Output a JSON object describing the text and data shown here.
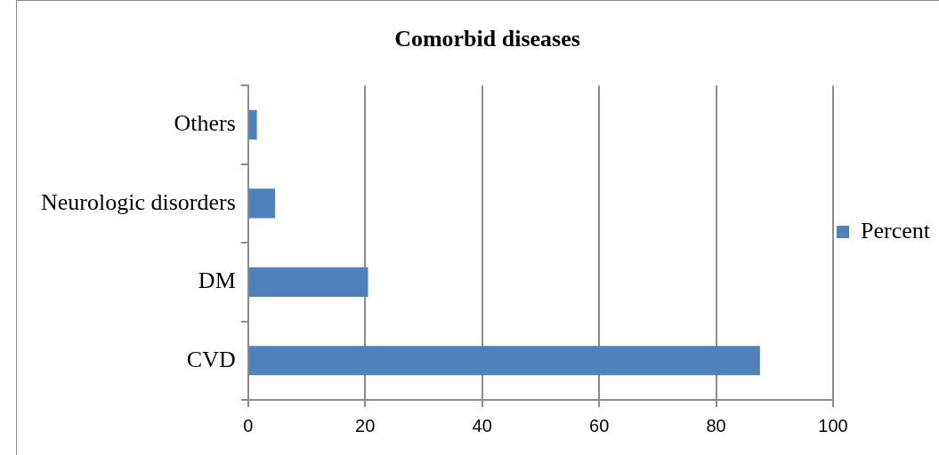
{
  "chart_data": {
    "type": "bar",
    "orientation": "horizontal",
    "title": "Comorbid diseases",
    "categories": [
      "Others",
      "Neurologic disorders",
      "DM",
      "CVD"
    ],
    "series": [
      {
        "name": "Percent",
        "color": "#4f81bd",
        "values": [
          1.5,
          4.6,
          20.5,
          87.5
        ]
      }
    ],
    "xlim": [
      0,
      100
    ],
    "xticks": [
      0,
      20,
      40,
      60,
      80,
      100
    ],
    "grid": "x",
    "legend": "right"
  }
}
